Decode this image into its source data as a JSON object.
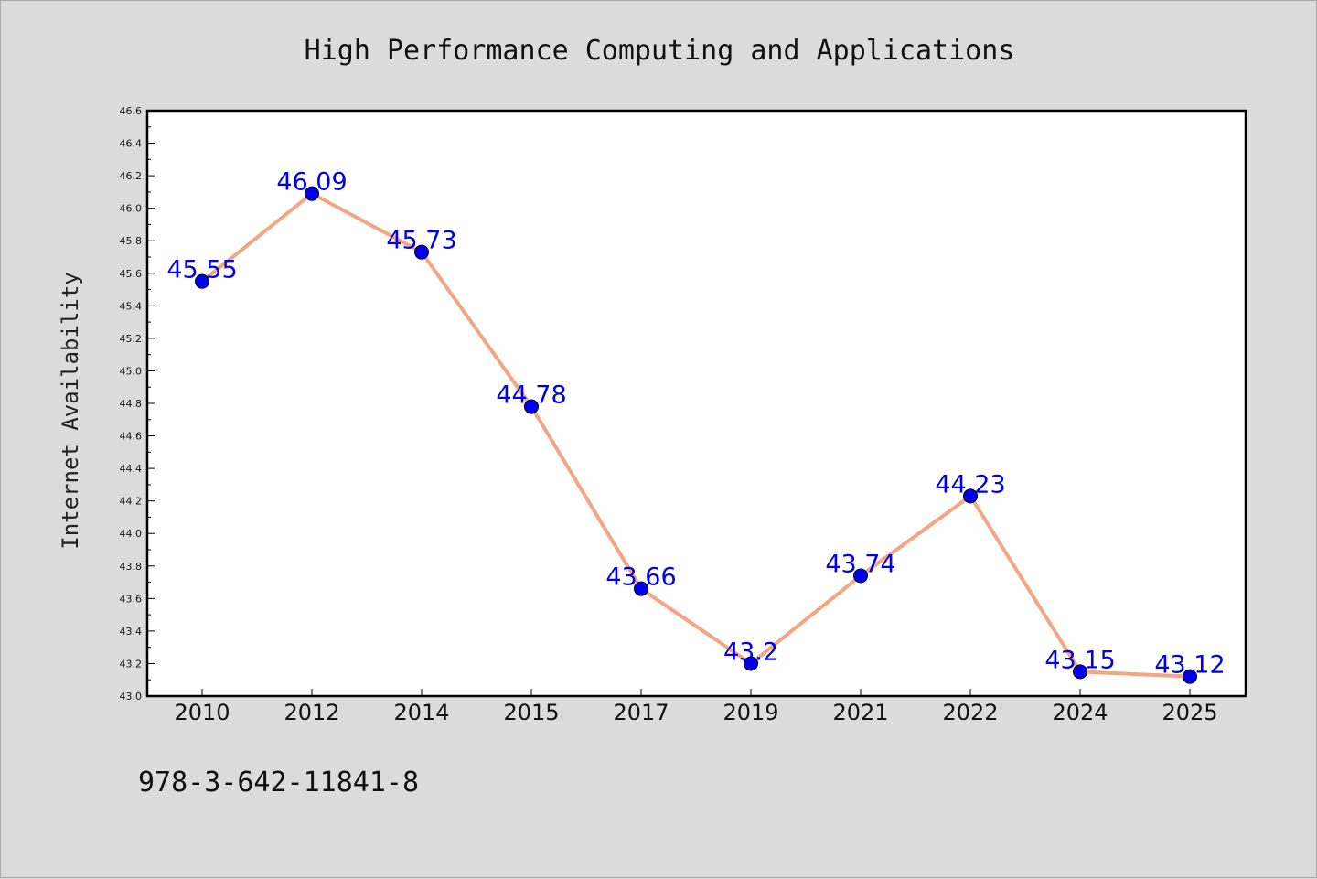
{
  "chart_data": {
    "type": "line",
    "title": "High Performance Computing and Applications",
    "xlabel": "",
    "ylabel": "Internet Availability",
    "categories": [
      "2010",
      "2012",
      "2014",
      "2015",
      "2017",
      "2019",
      "2021",
      "2022",
      "2024",
      "2025"
    ],
    "values": [
      45.55,
      46.09,
      45.73,
      44.78,
      43.66,
      43.2,
      43.74,
      44.23,
      43.15,
      43.12
    ],
    "data_labels": [
      "45.55",
      "46.09",
      "45.73",
      "44.78",
      "43.66",
      "43.2",
      "43.74",
      "44.23",
      "43.15",
      "43.12"
    ],
    "ylim": [
      43.0,
      46.6
    ],
    "yticks": [
      "43.0",
      "43.2",
      "43.4",
      "43.6",
      "43.8",
      "44.0",
      "44.2",
      "44.4",
      "44.6",
      "44.8",
      "45.0",
      "45.2",
      "45.4",
      "45.6",
      "45.8",
      "46.0",
      "46.2",
      "46.4",
      "46.6"
    ],
    "grid": false,
    "line_color": "#f4a582",
    "marker_color": "#0000ee",
    "label_color": "#0000ee"
  },
  "footer": {
    "isbn": "978-3-642-11841-8"
  }
}
